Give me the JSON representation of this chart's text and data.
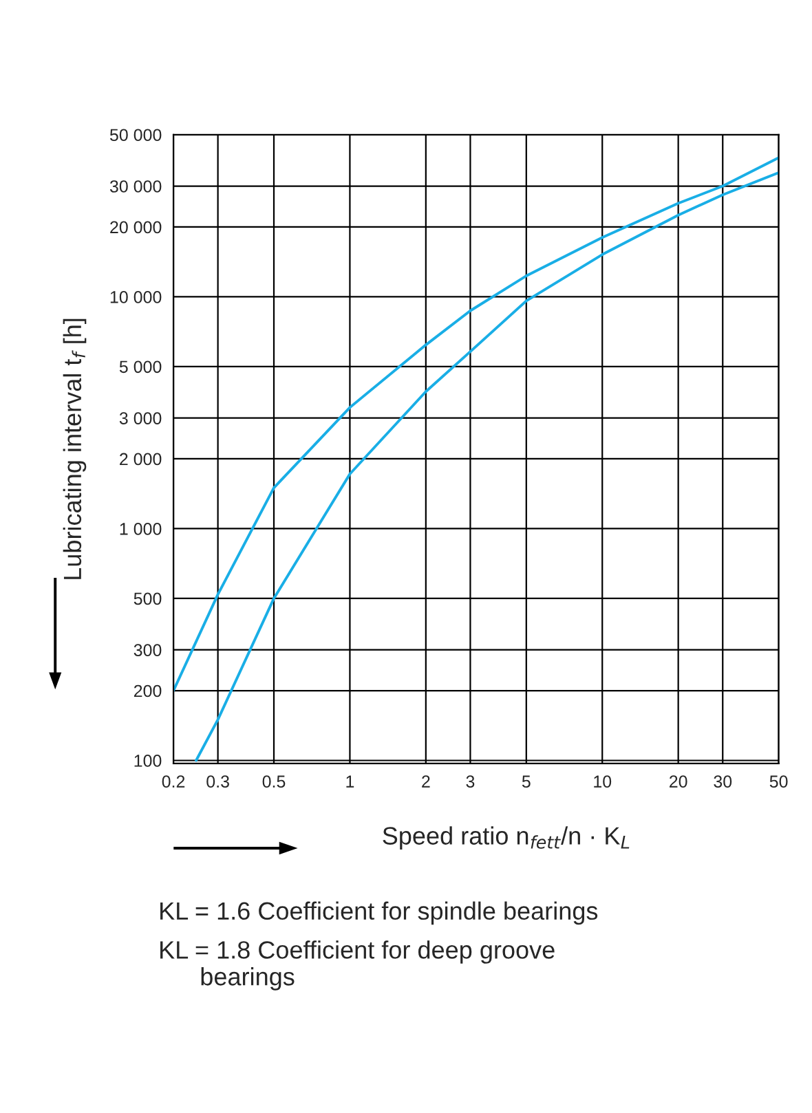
{
  "chart_data": {
    "type": "line",
    "xlabel": "Speed ratio n$_{fett}$/n · K$_{L}$",
    "ylabel": "Lubricating interval t$_{f}$ [h]",
    "log": "xy",
    "grid": true,
    "marker": "none",
    "line_style": "solid",
    "xlim": [
      0.2,
      50
    ],
    "ylim": [
      97,
      50000
    ],
    "xticks": [
      0.2,
      0.3,
      0.5,
      1,
      2,
      3,
      5,
      10,
      20,
      30,
      50
    ],
    "yticks": [
      100,
      200,
      300,
      500,
      {
        "value": 1000,
        "label": "1 000"
      },
      {
        "value": 2000,
        "label": "2 000"
      },
      {
        "value": 3000,
        "label": "3 000"
      },
      {
        "value": 5000,
        "label": "5 000"
      },
      {
        "value": 10000,
        "label": "10 000"
      },
      {
        "value": 20000,
        "label": "20 000"
      },
      {
        "value": 30000,
        "label": "30 000"
      },
      {
        "value": 50000,
        "label": "50 000"
      }
    ],
    "series": [
      {
        "color": "#19aee6",
        "x": [
          0.2,
          0.3,
          0.5,
          1,
          2,
          3,
          5,
          10,
          20,
          30,
          50
        ],
        "values": [
          200,
          520,
          1500,
          3330,
          6200,
          8700,
          12300,
          18000,
          25300,
          30000,
          39800
        ]
      },
      {
        "color": "#19aee6",
        "x": [
          0.246,
          0.3,
          0.5,
          1,
          2,
          3,
          5,
          10,
          20,
          30,
          50
        ],
        "values": [
          100,
          150,
          500,
          1720,
          3900,
          5800,
          9600,
          15200,
          22500,
          27500,
          34300
        ]
      }
    ],
    "annotations": [
      "KL = 1.6 Coefficient for spindle bearings",
      "KL = 1.8 Coefficient for deep groove\n      bearings"
    ]
  }
}
